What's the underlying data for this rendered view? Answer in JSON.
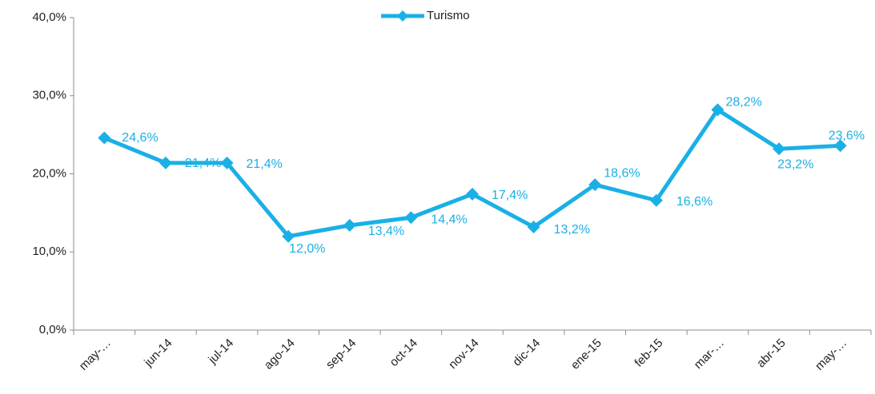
{
  "chart_data": {
    "type": "line",
    "categories": [
      "may-…",
      "jun-14",
      "jul-14",
      "ago-14",
      "sep-14",
      "oct-14",
      "nov-14",
      "dic-14",
      "ene-15",
      "feb-15",
      "mar-…",
      "abr-15",
      "may-…"
    ],
    "series": [
      {
        "name": "Turismo",
        "color": "#1ab0e6",
        "values": [
          24.6,
          21.4,
          21.4,
          12.0,
          13.4,
          14.4,
          17.4,
          13.2,
          18.6,
          16.6,
          28.2,
          23.2,
          23.6
        ],
        "value_labels": [
          "24,6%",
          "21,4%",
          "21,4%",
          "12,0%",
          "13,4%",
          "14,4%",
          "17,4%",
          "13,2%",
          "18,6%",
          "16,6%",
          "28,2%",
          "23,2%",
          "23,6%"
        ]
      }
    ],
    "ylim": [
      0,
      40
    ],
    "yticks": [
      {
        "value": 0,
        "label": "0,0%"
      },
      {
        "value": 10,
        "label": "10,0%"
      },
      {
        "value": 20,
        "label": "20,0%"
      },
      {
        "value": 30,
        "label": "30,0%"
      },
      {
        "value": 40,
        "label": "40,0%"
      }
    ],
    "legend": "top"
  }
}
